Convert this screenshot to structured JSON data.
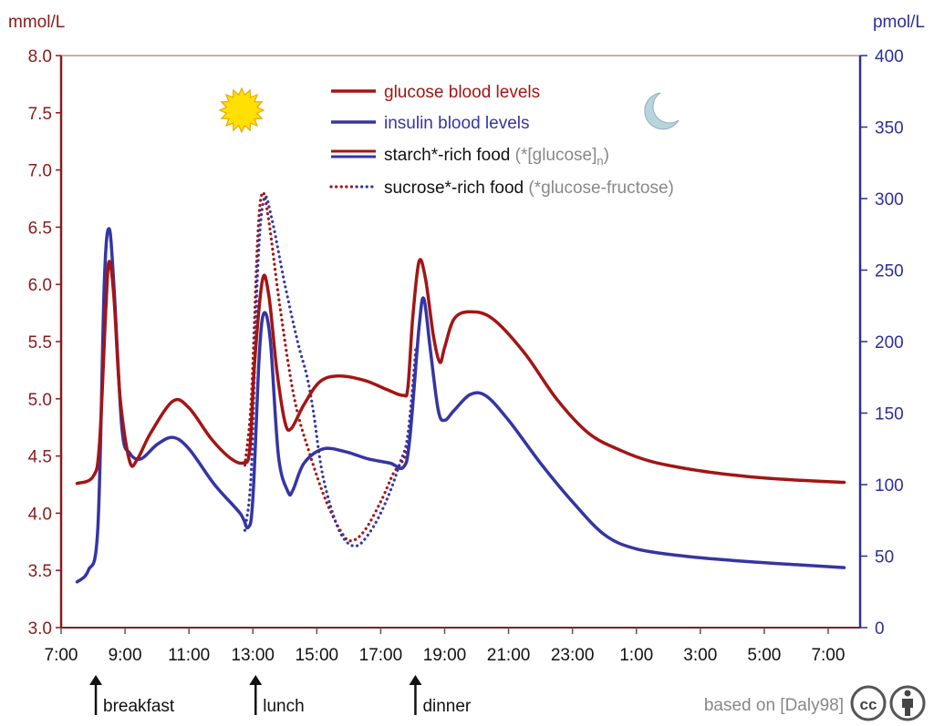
{
  "chart_data": {
    "type": "line",
    "left_axis": {
      "unit": "mmol/L",
      "ylim": [
        3.0,
        8.0
      ],
      "ticks": [
        "3.0",
        "3.5",
        "4.0",
        "4.5",
        "5.0",
        "5.5",
        "6.0",
        "6.5",
        "7.0",
        "7.5",
        "8.0"
      ]
    },
    "right_axis": {
      "unit": "pmol/L",
      "ylim": [
        0,
        400
      ],
      "ticks": [
        "0",
        "50",
        "100",
        "150",
        "200",
        "250",
        "300",
        "350",
        "400"
      ]
    },
    "x_axis": {
      "xlim": [
        7,
        32
      ],
      "ticks": [
        "7:00",
        "9:00",
        "11:00",
        "13:00",
        "15:00",
        "17:00",
        "19:00",
        "21:00",
        "23:00",
        "1:00",
        "3:00",
        "5:00",
        "7:00"
      ]
    },
    "legend": [
      {
        "text": "glucose blood levels",
        "color": "#a31515"
      },
      {
        "text": "insulin blood levels",
        "color": "#3030a0"
      },
      {
        "text": "starch*-rich food",
        "note": "(*[glucose]",
        "sub": "n",
        "close": ")"
      },
      {
        "text": "sucrose*-rich food",
        "note": "(*glucose-fructose)"
      }
    ],
    "meals": [
      {
        "label": "breakfast",
        "time": 8.0
      },
      {
        "label": "lunch",
        "time": 13.0
      },
      {
        "label": "dinner",
        "time": 18.0
      }
    ],
    "colors": {
      "glucose": "#a31515",
      "insulin": "#3535a5",
      "axis_left": "#8b1a1a",
      "axis_right": "#2e2e9a",
      "sun": "#ffe000",
      "moon": "#b8d4dc"
    },
    "series": [
      {
        "name": "glucose (starch)",
        "axis": "left",
        "style": "solid",
        "points": [
          [
            7.5,
            4.26
          ],
          [
            8.0,
            4.32
          ],
          [
            8.2,
            4.6
          ],
          [
            8.4,
            5.8
          ],
          [
            8.5,
            6.2
          ],
          [
            8.65,
            5.9
          ],
          [
            8.85,
            5.0
          ],
          [
            9.15,
            4.45
          ],
          [
            9.4,
            4.48
          ],
          [
            9.8,
            4.7
          ],
          [
            10.5,
            4.98
          ],
          [
            11.0,
            4.92
          ],
          [
            11.7,
            4.65
          ],
          [
            12.3,
            4.48
          ],
          [
            12.7,
            4.44
          ],
          [
            12.9,
            4.55
          ],
          [
            13.05,
            5.3
          ],
          [
            13.3,
            6.04
          ],
          [
            13.5,
            5.9
          ],
          [
            13.75,
            5.25
          ],
          [
            14.0,
            4.8
          ],
          [
            14.2,
            4.74
          ],
          [
            14.6,
            4.95
          ],
          [
            15.1,
            5.15
          ],
          [
            15.7,
            5.2
          ],
          [
            16.5,
            5.16
          ],
          [
            17.2,
            5.08
          ],
          [
            17.7,
            5.03
          ],
          [
            17.85,
            5.1
          ],
          [
            18.0,
            5.7
          ],
          [
            18.2,
            6.2
          ],
          [
            18.4,
            6.05
          ],
          [
            18.65,
            5.55
          ],
          [
            18.85,
            5.32
          ],
          [
            19.0,
            5.45
          ],
          [
            19.3,
            5.7
          ],
          [
            19.8,
            5.76
          ],
          [
            20.5,
            5.7
          ],
          [
            21.5,
            5.4
          ],
          [
            22.5,
            5.0
          ],
          [
            23.5,
            4.7
          ],
          [
            24.5,
            4.55
          ],
          [
            25.5,
            4.45
          ],
          [
            27.0,
            4.37
          ],
          [
            28.5,
            4.32
          ],
          [
            30.0,
            4.29
          ],
          [
            31.5,
            4.27
          ]
        ]
      },
      {
        "name": "insulin (starch)",
        "axis": "right",
        "style": "solid",
        "points": [
          [
            7.5,
            32
          ],
          [
            7.85,
            40
          ],
          [
            8.15,
            70
          ],
          [
            8.35,
            240
          ],
          [
            8.5,
            279
          ],
          [
            8.65,
            240
          ],
          [
            8.9,
            140
          ],
          [
            9.15,
            122
          ],
          [
            9.5,
            118
          ],
          [
            10.0,
            128
          ],
          [
            10.5,
            133
          ],
          [
            11.0,
            125
          ],
          [
            11.8,
            100
          ],
          [
            12.6,
            80
          ],
          [
            12.85,
            70
          ],
          [
            13.0,
            90
          ],
          [
            13.2,
            190
          ],
          [
            13.35,
            220
          ],
          [
            13.55,
            200
          ],
          [
            13.8,
            120
          ],
          [
            14.1,
            95
          ],
          [
            14.25,
            96
          ],
          [
            14.6,
            115
          ],
          [
            15.2,
            125
          ],
          [
            15.9,
            123
          ],
          [
            16.6,
            118
          ],
          [
            17.3,
            115
          ],
          [
            17.7,
            112
          ],
          [
            17.9,
            130
          ],
          [
            18.2,
            210
          ],
          [
            18.35,
            230
          ],
          [
            18.55,
            195
          ],
          [
            18.8,
            152
          ],
          [
            19.0,
            145
          ],
          [
            19.3,
            152
          ],
          [
            19.8,
            163
          ],
          [
            20.3,
            162
          ],
          [
            21.0,
            145
          ],
          [
            22.0,
            115
          ],
          [
            23.0,
            88
          ],
          [
            24.0,
            65
          ],
          [
            25.0,
            55
          ],
          [
            26.5,
            50
          ],
          [
            28.0,
            47
          ],
          [
            30.0,
            44
          ],
          [
            31.5,
            42
          ]
        ]
      },
      {
        "name": "glucose (sucrose)",
        "axis": "left",
        "style": "dotted",
        "points": [
          [
            12.75,
            4.42
          ],
          [
            12.95,
            5.0
          ],
          [
            13.15,
            6.4
          ],
          [
            13.3,
            6.8
          ],
          [
            13.5,
            6.55
          ],
          [
            13.85,
            5.8
          ],
          [
            14.3,
            5.0
          ],
          [
            14.8,
            4.5
          ],
          [
            15.3,
            4.1
          ],
          [
            15.8,
            3.82
          ],
          [
            16.1,
            3.76
          ],
          [
            16.5,
            3.85
          ],
          [
            17.0,
            4.1
          ],
          [
            17.4,
            4.35
          ],
          [
            17.6,
            4.42
          ],
          [
            17.85,
            4.6
          ],
          [
            18.05,
            5.2
          ]
        ]
      },
      {
        "name": "insulin (sucrose)",
        "axis": "right",
        "style": "dotted",
        "points": [
          [
            12.75,
            68
          ],
          [
            12.95,
            110
          ],
          [
            13.15,
            250
          ],
          [
            13.35,
            300
          ],
          [
            13.6,
            285
          ],
          [
            14.0,
            240
          ],
          [
            14.4,
            200
          ],
          [
            14.7,
            175
          ],
          [
            14.9,
            150
          ],
          [
            15.2,
            105
          ],
          [
            15.7,
            68
          ],
          [
            16.2,
            57
          ],
          [
            16.7,
            68
          ],
          [
            17.2,
            90
          ],
          [
            17.6,
            115
          ],
          [
            17.85,
            135
          ],
          [
            18.1,
            195
          ]
        ]
      }
    ],
    "credit": "based on [Daly98]",
    "cc_badge": "cc"
  }
}
